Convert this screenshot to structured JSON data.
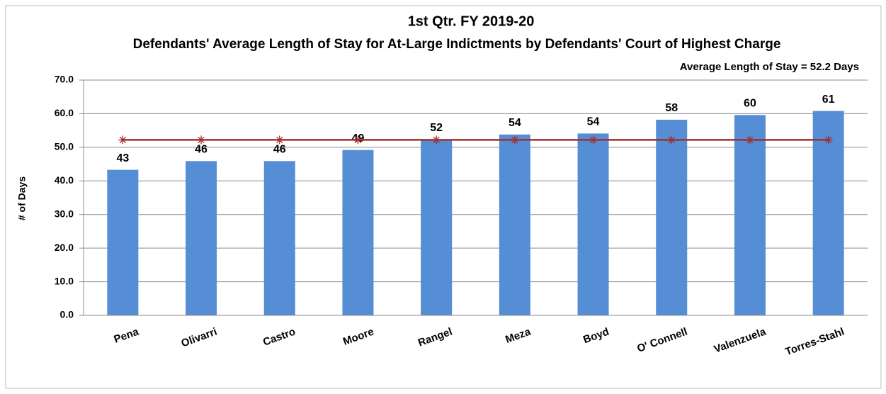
{
  "chart_data": {
    "type": "bar",
    "title": "1st Qtr. FY 2019-20",
    "subtitle": "Defendants' Average Length of Stay for At-Large Indictments by Defendants' Court of Highest Charge",
    "annotation": "Average Length of Stay = 52.2 Days",
    "y_label": "# of Days",
    "categories": [
      "Pena",
      "Olivarri",
      "Castro",
      "Moore",
      "Rangel",
      "Meza",
      "Boyd",
      "O' Connell",
      "Valenzuela",
      "Torres-Stahl"
    ],
    "series": [
      {
        "type": "bar",
        "color": "#558ed5",
        "values": [
          43.3,
          45.9,
          45.9,
          49.2,
          52.3,
          53.8,
          54.1,
          58.2,
          59.6,
          60.8
        ],
        "value_labels": [
          "43",
          "46",
          "46",
          "49",
          "52",
          "54",
          "54",
          "58",
          "60",
          "61"
        ]
      },
      {
        "type": "line",
        "color": "#a0302d",
        "values": [
          52.2,
          52.2,
          52.2,
          52.2,
          52.2,
          52.2,
          52.2,
          52.2,
          52.2,
          52.2
        ]
      }
    ],
    "ylim": [
      0,
      70
    ],
    "yticks": [
      {
        "value": 0,
        "label": "0.0"
      },
      {
        "value": 10,
        "label": "10.0"
      },
      {
        "value": 20,
        "label": "20.0"
      },
      {
        "value": 30,
        "label": "30.0"
      },
      {
        "value": 40,
        "label": "40.0"
      },
      {
        "value": 50,
        "label": "50.0"
      },
      {
        "value": 60,
        "label": "60.0"
      },
      {
        "value": 70,
        "label": "70.0"
      }
    ],
    "grid": true
  }
}
